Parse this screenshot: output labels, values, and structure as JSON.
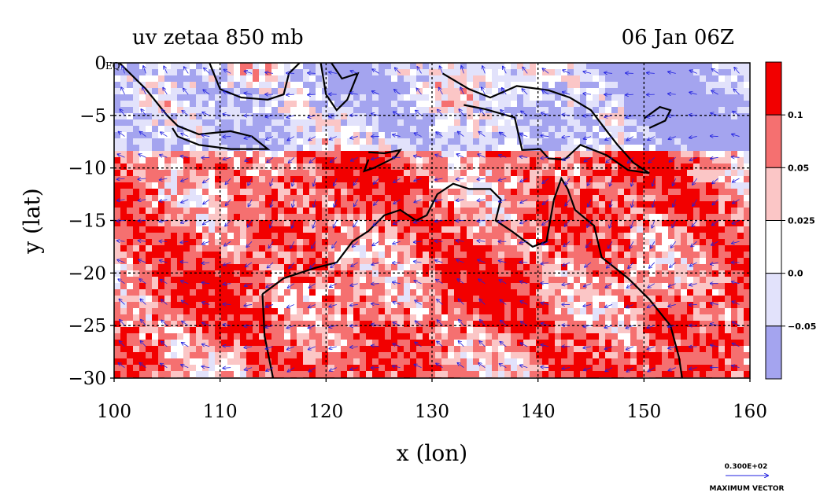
{
  "chart_data": {
    "type": "heatmap",
    "title": "uv zetaa 850 mb",
    "subtitle": "06 Jan 06Z",
    "xlabel": "x (lon)",
    "ylabel": "y (lat)",
    "xlim": [
      100,
      160
    ],
    "ylim": [
      -30,
      0
    ],
    "x_ticks": [
      "100",
      "110",
      "120",
      "130",
      "140",
      "150",
      "160"
    ],
    "y_ticks": [
      "0",
      "−5",
      "−10",
      "−15",
      "−20",
      "−25",
      "−30"
    ],
    "y_tick_values": [
      0,
      -5,
      -10,
      -15,
      -20,
      -25,
      -30
    ],
    "x_tick_values": [
      100,
      110,
      120,
      130,
      140,
      150,
      160
    ],
    "eq_label": "EQ",
    "grid": true,
    "colorbar": {
      "labels": [
        "0.1",
        "0.05",
        "0.025",
        "0.0",
        "−0.05"
      ],
      "levels": [
        0.1,
        0.05,
        0.025,
        0.0,
        -0.05
      ],
      "colors": [
        "#f20000",
        "#f57070",
        "#fbc6c6",
        "#ffffff",
        "#e2e2fb",
        "#a4a4ef"
      ]
    },
    "vector_legend": {
      "magnitude": "0.300E+02",
      "caption": "MAXIMUM VECTOR"
    }
  }
}
